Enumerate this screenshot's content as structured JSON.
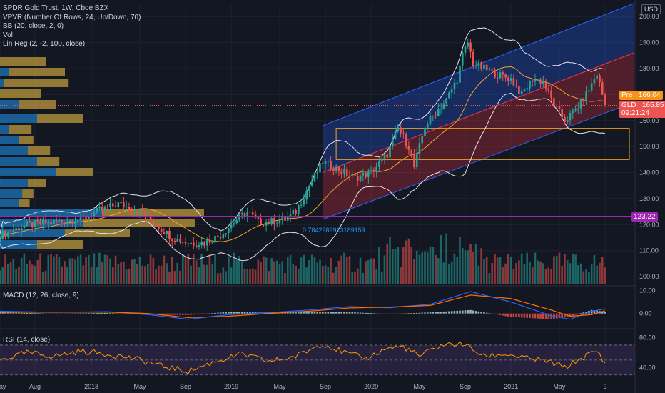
{
  "header": {
    "title": "SPDR Gold Trust, 1W, Cboe BZX",
    "indicators": [
      "VPVR (Number Of Rows, 24, Up/Down, 70)",
      "BB (20, close, 2, 0)",
      "Vol",
      "Lin Reg (2, -2, 100, close)"
    ],
    "currency": "USD"
  },
  "panes": {
    "macd_label": "MACD (12, 26, close, 9)",
    "rsi_label": "RSI (14, close)"
  },
  "price_tags": {
    "pre_label": "Pre",
    "pre_value": "166.04",
    "gld_label": "GLD",
    "gld_value": "165.85",
    "countdown": "09:21:24",
    "level_value": "123.22"
  },
  "annotations": {
    "fib_level_text": "0.7842989913189159"
  },
  "colors": {
    "background": "#131722",
    "up": "#26a69a",
    "down": "#ef5350",
    "bb": "#e0e3eb",
    "basis": "#f5a623",
    "channel_upper": "#2962ff",
    "channel_lower": "#f23645",
    "level_line": "#9c27b0",
    "macd": "#2962ff",
    "signal": "#ff6d00",
    "rsi": "#ff9800",
    "vp_up": "#2196f3",
    "vp_down": "#f9c846"
  },
  "chart_data": [
    {
      "type": "candlestick",
      "title": "SPDR Gold Trust, 1W, Cboe BZX",
      "x_tick_labels": [
        "May",
        "Aug",
        "2018",
        "May",
        "Sep",
        "2019",
        "May",
        "Sep",
        "2020",
        "May",
        "Sep",
        "2021",
        "May",
        "9"
      ],
      "y_tick_labels": [
        "100.00",
        "110.00",
        "120.00",
        "130.00",
        "140.00",
        "150.00",
        "160.00",
        "170.00",
        "180.00",
        "190.00",
        "200.00"
      ],
      "ylim": [
        97,
        205
      ],
      "x_range_weeks": [
        0,
        225
      ],
      "close_anchors": [
        [
          0,
          116
        ],
        [
          10,
          120
        ],
        [
          20,
          121
        ],
        [
          30,
          122
        ],
        [
          36,
          125
        ],
        [
          44,
          128
        ],
        [
          52,
          125
        ],
        [
          58,
          120
        ],
        [
          64,
          115
        ],
        [
          70,
          113
        ],
        [
          76,
          113
        ],
        [
          82,
          116
        ],
        [
          88,
          122
        ],
        [
          92,
          125
        ],
        [
          96,
          121
        ],
        [
          100,
          121
        ],
        [
          106,
          122
        ],
        [
          110,
          125
        ],
        [
          114,
          133
        ],
        [
          120,
          144
        ],
        [
          126,
          141
        ],
        [
          132,
          138
        ],
        [
          138,
          140
        ],
        [
          144,
          147
        ],
        [
          148,
          157
        ],
        [
          152,
          150
        ],
        [
          154,
          142
        ],
        [
          158,
          158
        ],
        [
          162,
          163
        ],
        [
          166,
          168
        ],
        [
          170,
          176
        ],
        [
          172,
          185
        ],
        [
          174,
          190
        ],
        [
          176,
          182
        ],
        [
          180,
          180
        ],
        [
          184,
          178
        ],
        [
          190,
          176
        ],
        [
          194,
          170
        ],
        [
          198,
          176
        ],
        [
          202,
          175
        ],
        [
          206,
          166
        ],
        [
          210,
          160
        ],
        [
          214,
          164
        ],
        [
          218,
          170
        ],
        [
          222,
          178
        ],
        [
          225,
          166
        ]
      ],
      "last_value": 165.85,
      "pre_value": 166.04,
      "horizontal_level": 123.22,
      "regression_channel": {
        "start_week": 120,
        "end_week": 225,
        "upper_start": 158,
        "upper_end": 205,
        "mid_start": 140,
        "mid_end": 186,
        "lower_start": 122,
        "lower_end": 167
      },
      "rectangle_zone": {
        "start_week": 125,
        "end_week": 225,
        "top": 157,
        "bottom": 145
      },
      "grid": true
    },
    {
      "type": "line",
      "title": "MACD (12, 26, close, 9)",
      "y_tick_labels": [
        "10.00",
        "0.00"
      ],
      "ylim": [
        -6,
        12
      ],
      "series": [
        {
          "name": "MACD",
          "anchors": [
            [
              0,
              1
            ],
            [
              20,
              0.5
            ],
            [
              40,
              0.8
            ],
            [
              55,
              -0.5
            ],
            [
              70,
              -2.5
            ],
            [
              85,
              -0.5
            ],
            [
              100,
              0.4
            ],
            [
              115,
              1.5
            ],
            [
              130,
              3
            ],
            [
              145,
              2.5
            ],
            [
              160,
              4
            ],
            [
              175,
              9.5
            ],
            [
              190,
              5
            ],
            [
              205,
              -1
            ],
            [
              212,
              -2.5
            ],
            [
              220,
              1
            ],
            [
              225,
              2
            ]
          ]
        },
        {
          "name": "Signal",
          "anchors": [
            [
              0,
              0.5
            ],
            [
              20,
              0.6
            ],
            [
              40,
              0.6
            ],
            [
              55,
              0
            ],
            [
              70,
              -1.8
            ],
            [
              85,
              -1.2
            ],
            [
              100,
              0
            ],
            [
              115,
              1
            ],
            [
              130,
              2.4
            ],
            [
              145,
              2.8
            ],
            [
              160,
              3.5
            ],
            [
              175,
              8
            ],
            [
              190,
              6.5
            ],
            [
              205,
              1.5
            ],
            [
              212,
              -1.2
            ],
            [
              220,
              -0.5
            ],
            [
              225,
              1.2
            ]
          ]
        }
      ]
    },
    {
      "type": "line",
      "title": "RSI (14, close)",
      "y_tick_labels": [
        "80.00",
        "40.00"
      ],
      "ylim": [
        25,
        90
      ],
      "series": [
        {
          "name": "RSI",
          "anchors": [
            [
              0,
              50
            ],
            [
              10,
              60
            ],
            [
              20,
              55
            ],
            [
              30,
              62
            ],
            [
              40,
              58
            ],
            [
              50,
              52
            ],
            [
              60,
              42
            ],
            [
              70,
              35
            ],
            [
              80,
              48
            ],
            [
              90,
              58
            ],
            [
              100,
              48
            ],
            [
              110,
              55
            ],
            [
              120,
              72
            ],
            [
              128,
              60
            ],
            [
              136,
              52
            ],
            [
              144,
              66
            ],
            [
              150,
              68
            ],
            [
              156,
              55
            ],
            [
              164,
              70
            ],
            [
              172,
              72
            ],
            [
              180,
              55
            ],
            [
              188,
              58
            ],
            [
              196,
              52
            ],
            [
              204,
              48
            ],
            [
              210,
              40
            ],
            [
              218,
              56
            ],
            [
              222,
              62
            ],
            [
              225,
              45
            ]
          ]
        }
      ]
    }
  ]
}
